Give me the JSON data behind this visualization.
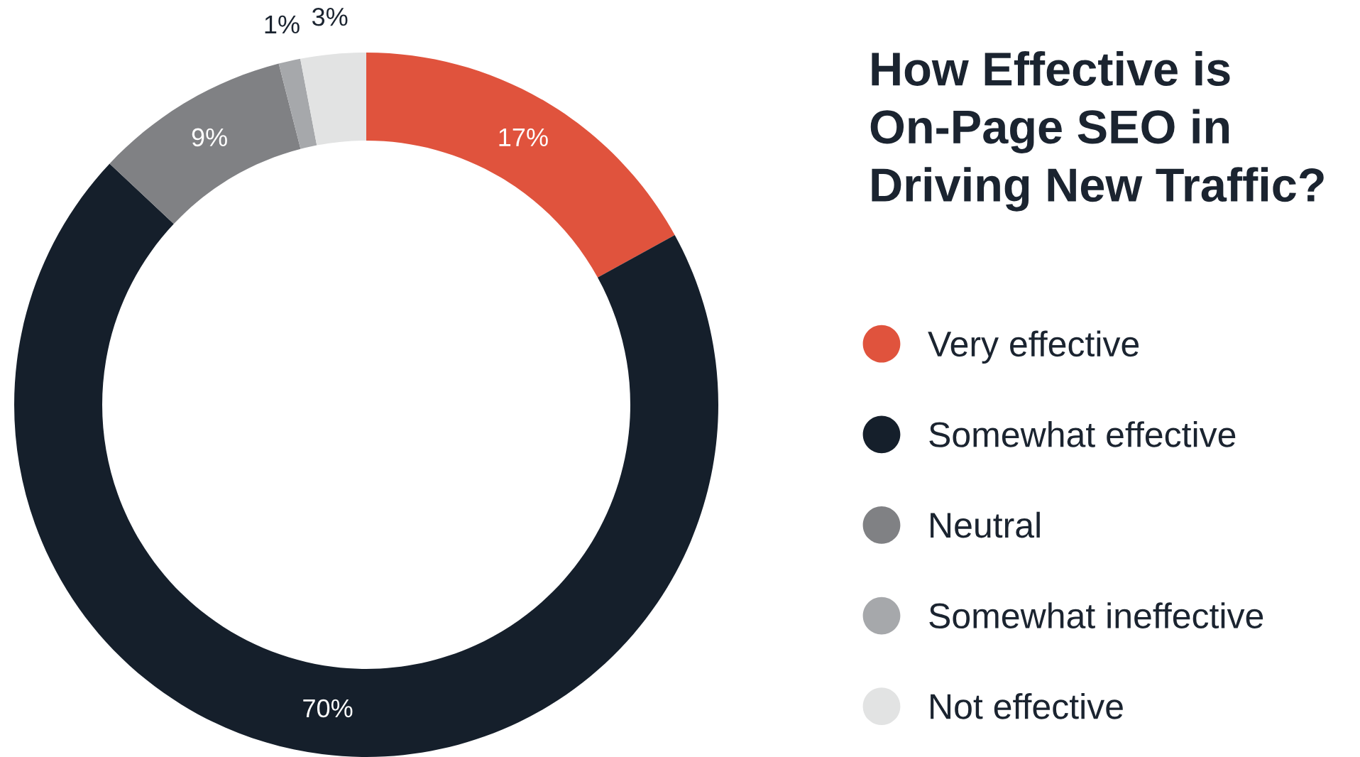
{
  "chart_data": {
    "type": "donut",
    "title": "How Effective is On-Page SEO in Driving New Traffic?",
    "categories": [
      "Very effective",
      "Somewhat effective",
      "Neutral",
      "Somewhat ineffective",
      "Not effective"
    ],
    "values": [
      17,
      70,
      9,
      1,
      3
    ],
    "value_labels": [
      "17%",
      "70%",
      "9%",
      "1%",
      "3%"
    ],
    "colors": [
      "#e0533d",
      "#151f2b",
      "#808184",
      "#a6a8ab",
      "#e2e3e3"
    ],
    "legend": "right"
  }
}
